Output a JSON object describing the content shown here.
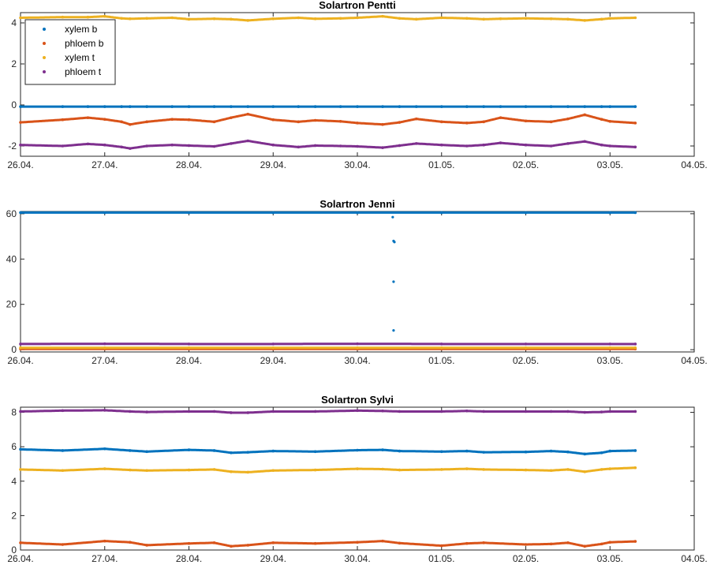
{
  "chart_data": [
    {
      "type": "scatter",
      "title": "Solartron Pentti",
      "xlabel": "",
      "ylabel": "",
      "x_ticks": [
        "26.04.",
        "27.04.",
        "28.04.",
        "29.04.",
        "30.04.",
        "01.05.",
        "02.05.",
        "03.05.",
        "04.05."
      ],
      "xlim": [
        "26.04.",
        "04.05."
      ],
      "ylim": [
        -2.5,
        4.5
      ],
      "y_ticks": [
        -2,
        0,
        2,
        4
      ],
      "grid": false,
      "legend": {
        "placement": "top-left",
        "entries": [
          "xylem b",
          "phloem b",
          "xylem t",
          "phloem t"
        ]
      },
      "x_days": [
        0,
        0.5,
        0.8,
        1.0,
        1.2,
        1.3,
        1.5,
        1.8,
        2.0,
        2.3,
        2.5,
        2.7,
        3.0,
        3.3,
        3.5,
        3.8,
        4.0,
        4.3,
        4.5,
        4.7,
        5.0,
        5.3,
        5.5,
        5.7,
        6.0,
        6.3,
        6.5,
        6.7,
        6.9,
        7.0,
        7.3
      ],
      "series": [
        {
          "name": "xylem b",
          "color": "#0072BD",
          "values": [
            -0.08,
            -0.08,
            -0.08,
            -0.08,
            -0.08,
            -0.08,
            -0.08,
            -0.08,
            -0.08,
            -0.08,
            -0.08,
            -0.08,
            -0.08,
            -0.08,
            -0.08,
            -0.08,
            -0.08,
            -0.08,
            -0.08,
            -0.08,
            -0.08,
            -0.08,
            -0.08,
            -0.08,
            -0.08,
            -0.08,
            -0.08,
            -0.08,
            -0.08,
            -0.08,
            -0.08
          ]
        },
        {
          "name": "phloem b",
          "color": "#D95319",
          "values": [
            -0.85,
            -0.72,
            -0.62,
            -0.7,
            -0.82,
            -0.95,
            -0.82,
            -0.7,
            -0.72,
            -0.82,
            -0.62,
            -0.45,
            -0.72,
            -0.82,
            -0.75,
            -0.8,
            -0.88,
            -0.95,
            -0.85,
            -0.68,
            -0.82,
            -0.88,
            -0.82,
            -0.62,
            -0.78,
            -0.82,
            -0.68,
            -0.48,
            -0.7,
            -0.8,
            -0.88
          ]
        },
        {
          "name": "xylem t",
          "color": "#EDB120",
          "values": [
            4.25,
            4.28,
            4.28,
            4.32,
            4.22,
            4.2,
            4.22,
            4.25,
            4.18,
            4.2,
            4.18,
            4.12,
            4.2,
            4.25,
            4.2,
            4.22,
            4.25,
            4.32,
            4.22,
            4.18,
            4.25,
            4.22,
            4.18,
            4.2,
            4.22,
            4.2,
            4.18,
            4.12,
            4.18,
            4.22,
            4.25
          ]
        },
        {
          "name": "phloem t",
          "color": "#7E2F8E",
          "values": [
            -1.95,
            -2.0,
            -1.9,
            -1.95,
            -2.05,
            -2.12,
            -2.0,
            -1.95,
            -1.98,
            -2.02,
            -1.88,
            -1.75,
            -1.95,
            -2.05,
            -1.98,
            -2.0,
            -2.02,
            -2.08,
            -1.98,
            -1.88,
            -1.95,
            -2.0,
            -1.95,
            -1.85,
            -1.95,
            -2.0,
            -1.88,
            -1.78,
            -1.95,
            -2.0,
            -2.05
          ]
        }
      ]
    },
    {
      "type": "scatter",
      "title": "Solartron Jenni",
      "xlabel": "",
      "ylabel": "",
      "x_ticks": [
        "26.04.",
        "27.04.",
        "28.04.",
        "29.04.",
        "30.04.",
        "01.05.",
        "02.05.",
        "03.05.",
        "04.05."
      ],
      "xlim": [
        "26.04.",
        "04.05."
      ],
      "ylim": [
        -1,
        61
      ],
      "y_ticks": [
        0,
        20,
        40,
        60
      ],
      "grid": false,
      "x_days": [
        0,
        1,
        2,
        3,
        4,
        5,
        6,
        7,
        7.3
      ],
      "series": [
        {
          "name": "xylem b",
          "color": "#0072BD",
          "values": [
            60.5,
            60.5,
            60.5,
            60.5,
            60.5,
            60.5,
            60.5,
            60.5,
            60.5
          ],
          "outliers": [
            {
              "x_day": 4.42,
              "y": 58.5
            },
            {
              "x_day": 4.43,
              "y": 48.0
            },
            {
              "x_day": 4.44,
              "y": 47.5
            },
            {
              "x_day": 4.43,
              "y": 30.0
            },
            {
              "x_day": 4.43,
              "y": 8.5
            }
          ]
        },
        {
          "name": "phloem b",
          "color": "#D95319",
          "values": [
            0.3,
            0.3,
            0.3,
            0.3,
            0.3,
            0.3,
            0.3,
            0.3,
            0.3
          ]
        },
        {
          "name": "xylem t",
          "color": "#EDB120",
          "values": [
            0.8,
            0.8,
            0.8,
            0.8,
            0.8,
            0.8,
            0.8,
            0.8,
            0.8
          ]
        },
        {
          "name": "phloem t",
          "color": "#7E2F8E",
          "values": [
            2.5,
            2.6,
            2.5,
            2.5,
            2.6,
            2.5,
            2.5,
            2.5,
            2.5
          ]
        }
      ]
    },
    {
      "type": "scatter",
      "title": "Solartron Sylvi",
      "xlabel": "",
      "ylabel": "",
      "x_ticks": [
        "26.04.",
        "27.04.",
        "28.04.",
        "29.04.",
        "30.04.",
        "01.05.",
        "02.05.",
        "03.05.",
        "04.05."
      ],
      "xlim": [
        "26.04.",
        "04.05."
      ],
      "ylim": [
        0,
        8.3
      ],
      "y_ticks": [
        0,
        2,
        4,
        6,
        8
      ],
      "grid": false,
      "x_days": [
        0,
        0.5,
        1.0,
        1.3,
        1.5,
        2.0,
        2.3,
        2.5,
        2.7,
        3.0,
        3.5,
        4.0,
        4.3,
        4.5,
        5.0,
        5.3,
        5.5,
        6.0,
        6.3,
        6.5,
        6.7,
        6.9,
        7.0,
        7.3
      ],
      "series": [
        {
          "name": "xylem b",
          "color": "#0072BD",
          "values": [
            5.85,
            5.78,
            5.88,
            5.78,
            5.72,
            5.82,
            5.78,
            5.65,
            5.68,
            5.75,
            5.72,
            5.8,
            5.82,
            5.75,
            5.72,
            5.75,
            5.68,
            5.7,
            5.75,
            5.7,
            5.58,
            5.65,
            5.75,
            5.78
          ]
        },
        {
          "name": "phloem b",
          "color": "#D95319",
          "values": [
            0.42,
            0.32,
            0.52,
            0.45,
            0.28,
            0.38,
            0.42,
            0.22,
            0.28,
            0.42,
            0.38,
            0.45,
            0.52,
            0.4,
            0.25,
            0.38,
            0.42,
            0.32,
            0.35,
            0.42,
            0.22,
            0.35,
            0.45,
            0.5
          ]
        },
        {
          "name": "xylem t",
          "color": "#EDB120",
          "values": [
            4.68,
            4.62,
            4.72,
            4.65,
            4.62,
            4.65,
            4.68,
            4.55,
            4.52,
            4.62,
            4.65,
            4.72,
            4.7,
            4.65,
            4.68,
            4.72,
            4.68,
            4.65,
            4.62,
            4.68,
            4.55,
            4.68,
            4.72,
            4.78
          ]
        },
        {
          "name": "phloem t",
          "color": "#7E2F8E",
          "values": [
            8.05,
            8.1,
            8.12,
            8.05,
            8.02,
            8.05,
            8.05,
            7.98,
            7.98,
            8.05,
            8.05,
            8.1,
            8.08,
            8.05,
            8.05,
            8.08,
            8.05,
            8.05,
            8.05,
            8.05,
            8.0,
            8.02,
            8.05,
            8.05
          ]
        }
      ]
    }
  ]
}
